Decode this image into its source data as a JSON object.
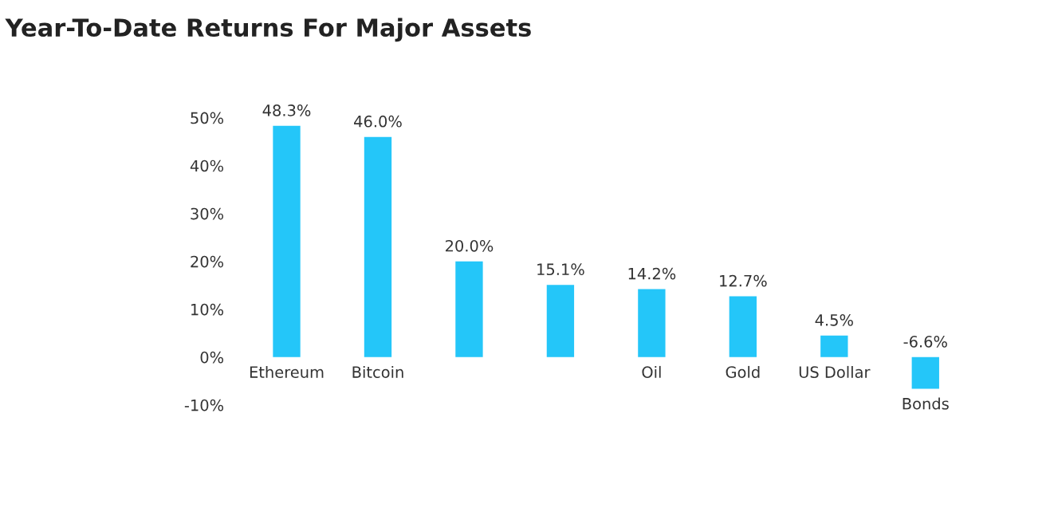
{
  "chart_data": {
    "type": "bar",
    "title": "Year-To-Date Returns For Major Assets",
    "categories": [
      "Ethereum",
      "Bitcoin",
      null,
      null,
      "Oil",
      "Gold",
      "US Dollar",
      "Bonds"
    ],
    "values": [
      48.3,
      46.0,
      20.0,
      15.1,
      14.2,
      12.7,
      4.5,
      -6.6
    ],
    "value_labels": [
      "48.3%",
      "46.0%",
      "20.0%",
      "15.1%",
      "14.2%",
      "12.7%",
      "4.5%",
      "-6.6%"
    ],
    "color": "#24c6f9",
    "ylim": [
      -10,
      50
    ],
    "yticks": [
      {
        "value": -10,
        "label": "-10%"
      },
      {
        "value": 0,
        "label": "0%"
      },
      {
        "value": 10,
        "label": "10%"
      },
      {
        "value": 20,
        "label": "20%"
      },
      {
        "value": 30,
        "label": "30%"
      },
      {
        "value": 40,
        "label": "40%"
      },
      {
        "value": 50,
        "label": "50%"
      }
    ],
    "grid": false
  }
}
